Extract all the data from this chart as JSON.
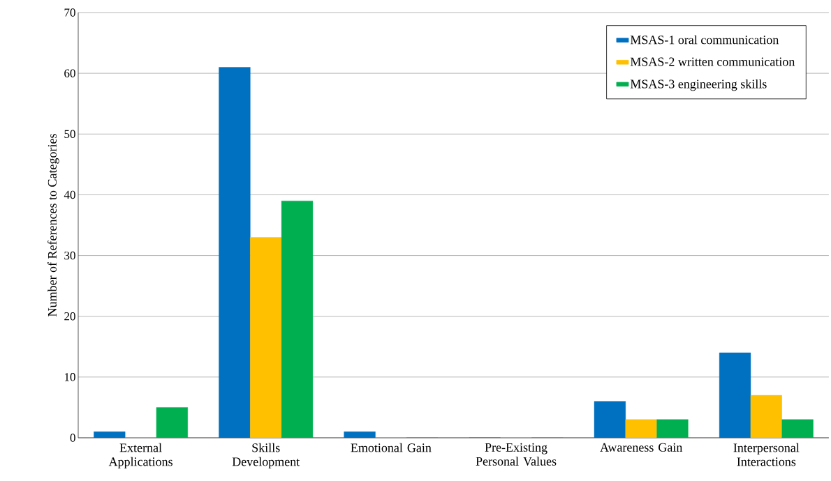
{
  "chart_data": {
    "type": "bar",
    "ylabel": "Number of References to Categories",
    "categories": [
      "External Applications",
      "Skills Development",
      "Emotional Gain",
      "Pre-Existing Personal Values",
      "Awareness Gain",
      "Interpersonal Interactions"
    ],
    "series": [
      {
        "name": "MSAS-1 oral communication",
        "color": "#0070c0",
        "values": [
          1,
          61,
          1,
          0,
          6,
          14
        ]
      },
      {
        "name": "MSAS-2 written communication",
        "color": "#ffc000",
        "values": [
          0,
          33,
          0,
          0,
          3,
          7
        ]
      },
      {
        "name": "MSAS-3 engineering skills",
        "color": "#00b050",
        "values": [
          5,
          39,
          0,
          0,
          3,
          3
        ]
      }
    ],
    "ylim": [
      0,
      70
    ],
    "yticks": [
      0,
      10,
      20,
      30,
      40,
      50,
      60,
      70
    ],
    "grid": "y",
    "legend": "top right"
  }
}
